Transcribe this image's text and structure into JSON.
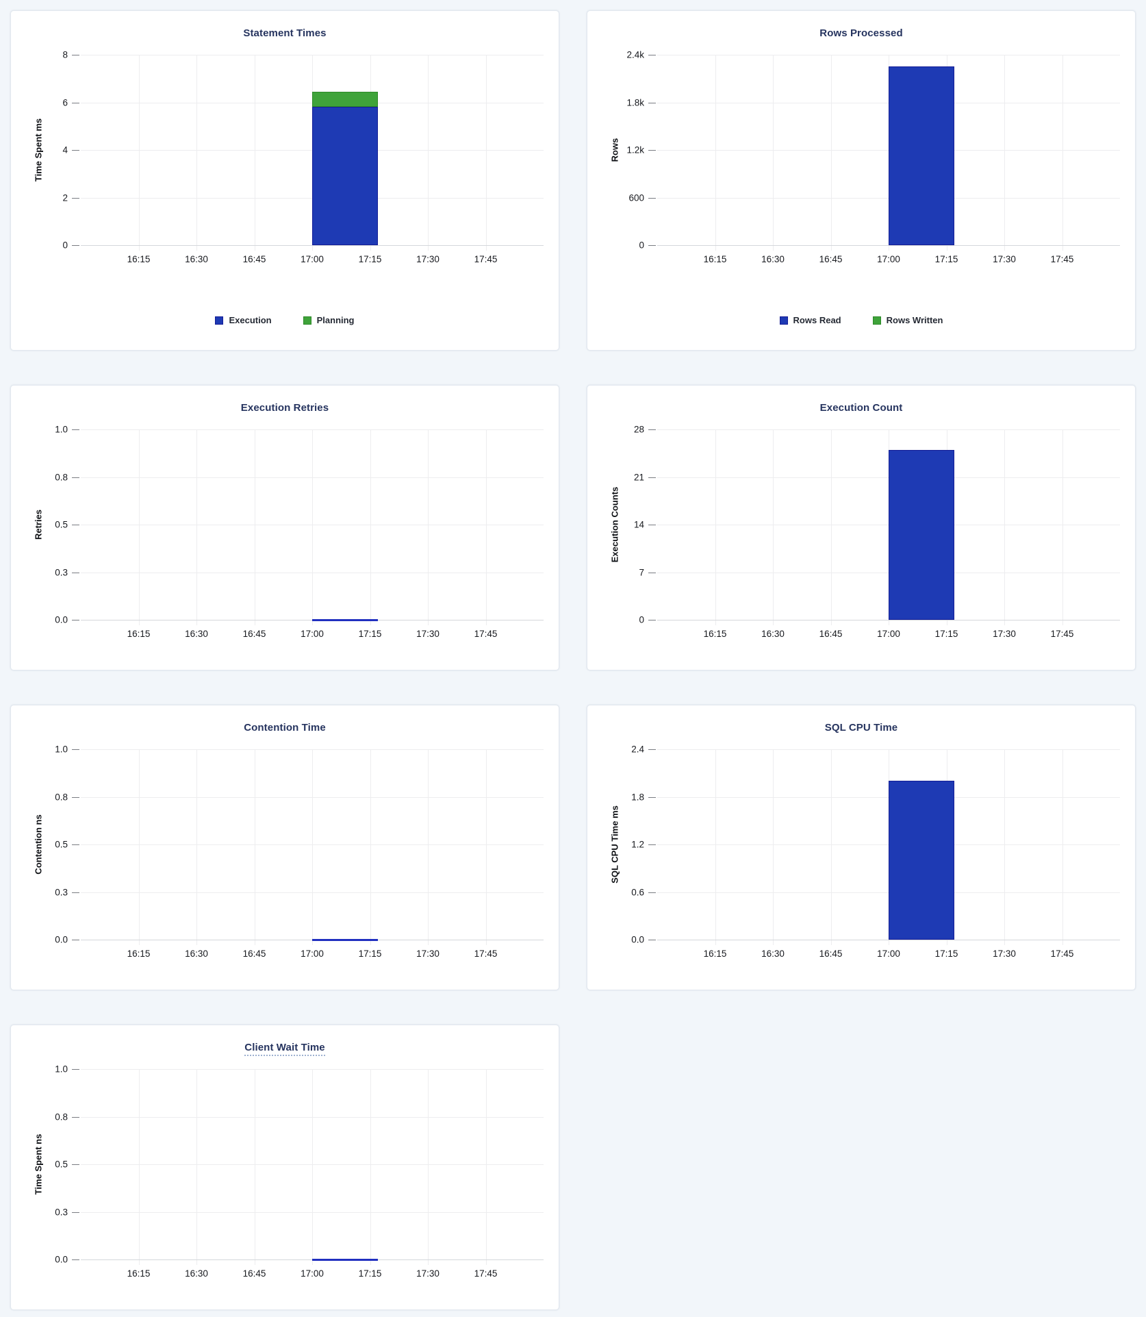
{
  "page": {
    "background": "#f2f6fa"
  },
  "palette": {
    "blue": {
      "fill": "#1e3ab4",
      "stroke": "#141d96"
    },
    "green": {
      "fill": "#3fa33a",
      "stroke": "#2c8928"
    },
    "line_blue": "#2130c0",
    "grid": "#ededef",
    "baseline": "#d4d7db",
    "tick_mark": "#797c82",
    "title_text": "#26345f",
    "tick_text": "#17191e",
    "legend_text": "#242933"
  },
  "x_axis": {
    "domain": [
      "16:00",
      "18:00"
    ],
    "ticks": [
      "16:15",
      "16:30",
      "16:45",
      "17:00",
      "17:15",
      "17:30",
      "17:45"
    ],
    "grid": true
  },
  "chart_data": [
    {
      "id": "statement-times",
      "type": "bar",
      "title": "Statement Times",
      "title_underline": false,
      "ylabel": "Time Spent ms",
      "ylim": [
        0,
        8
      ],
      "y_ticks": [
        {
          "value": 0,
          "label": "0"
        },
        {
          "value": 2,
          "label": "2"
        },
        {
          "value": 4,
          "label": "4"
        },
        {
          "value": 6,
          "label": "6"
        },
        {
          "value": 8,
          "label": "8"
        }
      ],
      "interval": {
        "start": "17:00",
        "end": "17:17"
      },
      "series": [
        {
          "name": "Execution",
          "color": "blue",
          "value": 5.8
        },
        {
          "name": "Planning",
          "color": "green",
          "value": 0.65
        }
      ],
      "legend": [
        {
          "label": "Execution",
          "color": "blue"
        },
        {
          "label": "Planning",
          "color": "green"
        }
      ],
      "legend_position": "bottom"
    },
    {
      "id": "rows-processed",
      "type": "bar",
      "title": "Rows Processed",
      "title_underline": false,
      "ylabel": "Rows",
      "ylim": [
        0,
        2400
      ],
      "y_ticks": [
        {
          "value": 0,
          "label": "0"
        },
        {
          "value": 600,
          "label": "600"
        },
        {
          "value": 1200,
          "label": "1.2k"
        },
        {
          "value": 1800,
          "label": "1.8k"
        },
        {
          "value": 2400,
          "label": "2.4k"
        }
      ],
      "interval": {
        "start": "17:00",
        "end": "17:17"
      },
      "series": [
        {
          "name": "Rows Read",
          "color": "blue",
          "value": 2250
        },
        {
          "name": "Rows Written",
          "color": "green",
          "value": 0
        }
      ],
      "legend": [
        {
          "label": "Rows Read",
          "color": "blue"
        },
        {
          "label": "Rows Written",
          "color": "green"
        }
      ],
      "legend_position": "bottom"
    },
    {
      "id": "execution-retries",
      "type": "line",
      "title": "Execution Retries",
      "title_underline": false,
      "ylabel": "Retries",
      "ylim": [
        0,
        1
      ],
      "y_ticks": [
        {
          "value": 0,
          "label": "0.0"
        },
        {
          "value": 0.25,
          "label": "0.3"
        },
        {
          "value": 0.5,
          "label": "0.5"
        },
        {
          "value": 0.75,
          "label": "0.8"
        },
        {
          "value": 1,
          "label": "1.0"
        }
      ],
      "interval": {
        "start": "17:00",
        "end": "17:17"
      },
      "series": [
        {
          "name": "Retries",
          "color": "blue",
          "value": 0
        }
      ],
      "legend": null
    },
    {
      "id": "execution-count",
      "type": "bar",
      "title": "Execution Count",
      "title_underline": false,
      "ylabel": "Execution Counts",
      "ylim": [
        0,
        28
      ],
      "y_ticks": [
        {
          "value": 0,
          "label": "0"
        },
        {
          "value": 7,
          "label": "7"
        },
        {
          "value": 14,
          "label": "14"
        },
        {
          "value": 21,
          "label": "21"
        },
        {
          "value": 28,
          "label": "28"
        }
      ],
      "interval": {
        "start": "17:00",
        "end": "17:17"
      },
      "series": [
        {
          "name": "Execution Count",
          "color": "blue",
          "value": 25
        }
      ],
      "legend": null
    },
    {
      "id": "contention-time",
      "type": "line",
      "title": "Contention Time",
      "title_underline": false,
      "ylabel": "Contention ns",
      "ylim": [
        0,
        1
      ],
      "y_ticks": [
        {
          "value": 0,
          "label": "0.0"
        },
        {
          "value": 0.25,
          "label": "0.3"
        },
        {
          "value": 0.5,
          "label": "0.5"
        },
        {
          "value": 0.75,
          "label": "0.8"
        },
        {
          "value": 1,
          "label": "1.0"
        }
      ],
      "interval": {
        "start": "17:00",
        "end": "17:17"
      },
      "series": [
        {
          "name": "Contention",
          "color": "blue",
          "value": 0
        }
      ],
      "legend": null
    },
    {
      "id": "sql-cpu-time",
      "type": "bar",
      "title": "SQL CPU Time",
      "title_underline": false,
      "ylabel": "SQL CPU Time ms",
      "ylim": [
        0,
        2.4
      ],
      "y_ticks": [
        {
          "value": 0,
          "label": "0.0"
        },
        {
          "value": 0.6,
          "label": "0.6"
        },
        {
          "value": 1.2,
          "label": "1.2"
        },
        {
          "value": 1.8,
          "label": "1.8"
        },
        {
          "value": 2.4,
          "label": "2.4"
        }
      ],
      "interval": {
        "start": "17:00",
        "end": "17:17"
      },
      "series": [
        {
          "name": "SQL CPU Time",
          "color": "blue",
          "value": 2.0
        }
      ],
      "legend": null
    },
    {
      "id": "client-wait-time",
      "type": "line",
      "title": "Client Wait Time",
      "title_underline": true,
      "ylabel": "Time Spent ns",
      "ylim": [
        0,
        1
      ],
      "y_ticks": [
        {
          "value": 0,
          "label": "0.0"
        },
        {
          "value": 0.25,
          "label": "0.3"
        },
        {
          "value": 0.5,
          "label": "0.5"
        },
        {
          "value": 0.75,
          "label": "0.8"
        },
        {
          "value": 1,
          "label": "1.0"
        }
      ],
      "interval": {
        "start": "17:00",
        "end": "17:17"
      },
      "series": [
        {
          "name": "Client Wait",
          "color": "blue",
          "value": 0
        }
      ],
      "legend": null
    }
  ]
}
